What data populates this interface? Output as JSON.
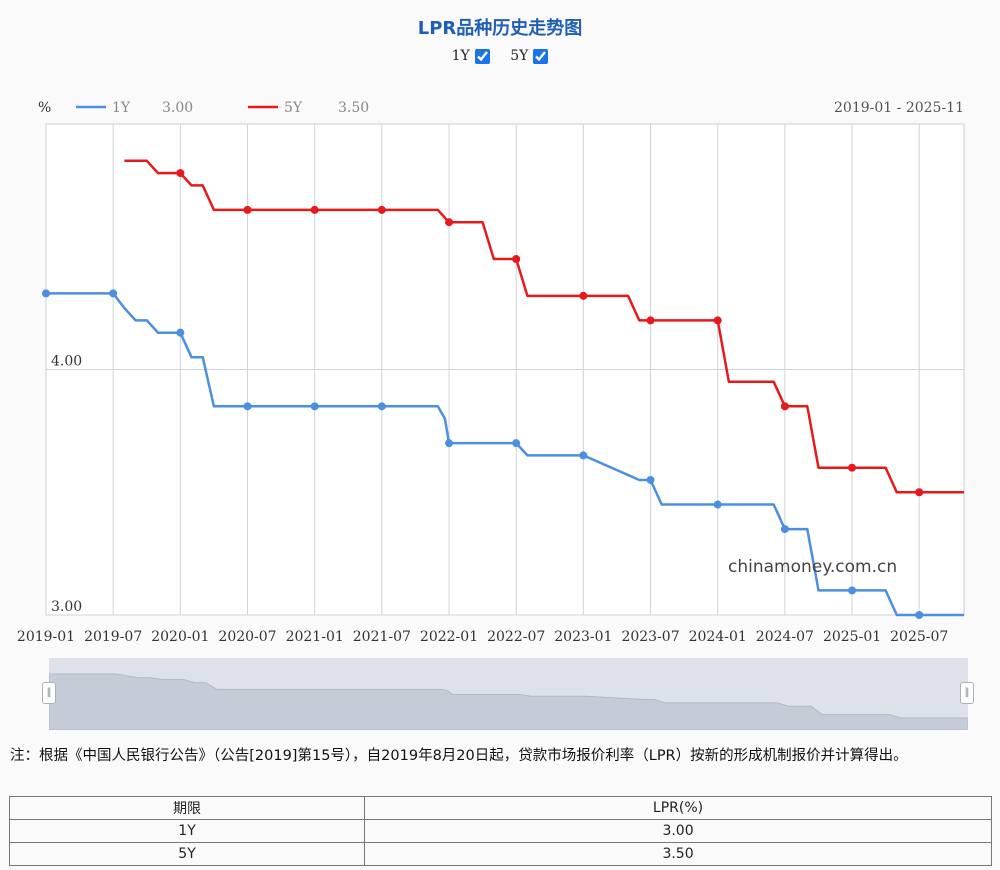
{
  "title": "LPR品种历史走势图",
  "toggles": [
    {
      "label": "1Y",
      "checked": true
    },
    {
      "label": "5Y",
      "checked": true
    }
  ],
  "watermark": "chinamoney.com.cn",
  "chart_data": {
    "type": "line",
    "ylabel": "%",
    "date_range": "2019-01 - 2025-11",
    "y_ticks": [
      "4.00",
      "3.00"
    ],
    "ylim": [
      3.0,
      5.0
    ],
    "x_ticks": [
      "2019-01",
      "2019-07",
      "2020-01",
      "2020-07",
      "2021-01",
      "2021-07",
      "2022-01",
      "2022-07",
      "2023-01",
      "2023-07",
      "2024-01",
      "2024-07",
      "2025-01",
      "2025-07"
    ],
    "grid": true,
    "legend_position": "top-left",
    "series": [
      {
        "name": "1Y",
        "latest": "3.00",
        "color": "#4a8fe0",
        "points": [
          [
            "2019-01",
            4.31
          ],
          [
            "2019-07",
            4.31
          ],
          [
            "2019-08",
            4.25
          ],
          [
            "2019-09",
            4.2
          ],
          [
            "2019-10",
            4.2
          ],
          [
            "2019-11",
            4.15
          ],
          [
            "2020-01",
            4.15
          ],
          [
            "2020-02",
            4.05
          ],
          [
            "2020-03",
            4.05
          ],
          [
            "2020-04",
            3.85
          ],
          [
            "2020-07",
            3.85
          ],
          [
            "2021-01",
            3.85
          ],
          [
            "2021-07",
            3.85
          ],
          [
            "2021-12",
            3.85
          ],
          [
            "2021-12-20",
            3.8
          ],
          [
            "2022-01",
            3.7
          ],
          [
            "2022-07",
            3.7
          ],
          [
            "2022-08",
            3.65
          ],
          [
            "2023-01",
            3.65
          ],
          [
            "2023-06",
            3.55
          ],
          [
            "2023-07",
            3.55
          ],
          [
            "2023-08",
            3.45
          ],
          [
            "2024-01",
            3.45
          ],
          [
            "2024-06",
            3.45
          ],
          [
            "2024-07",
            3.35
          ],
          [
            "2024-09",
            3.35
          ],
          [
            "2024-10",
            3.1
          ],
          [
            "2025-01",
            3.1
          ],
          [
            "2025-04",
            3.1
          ],
          [
            "2025-05",
            3.0
          ],
          [
            "2025-07",
            3.0
          ],
          [
            "2025-11",
            3.0
          ]
        ],
        "markers": [
          "2019-01",
          "2019-07",
          "2020-01",
          "2020-07",
          "2021-01",
          "2021-07",
          "2022-01",
          "2022-07",
          "2023-01",
          "2023-07",
          "2024-01",
          "2024-07",
          "2025-01",
          "2025-07"
        ]
      },
      {
        "name": "5Y",
        "latest": "3.50",
        "color": "#e8191b",
        "points": [
          [
            "2019-08",
            4.85
          ],
          [
            "2019-10",
            4.85
          ],
          [
            "2019-11",
            4.8
          ],
          [
            "2020-01",
            4.8
          ],
          [
            "2020-02",
            4.75
          ],
          [
            "2020-03",
            4.75
          ],
          [
            "2020-04",
            4.65
          ],
          [
            "2020-07",
            4.65
          ],
          [
            "2021-01",
            4.65
          ],
          [
            "2021-07",
            4.65
          ],
          [
            "2021-12",
            4.65
          ],
          [
            "2022-01",
            4.6
          ],
          [
            "2022-04",
            4.6
          ],
          [
            "2022-05",
            4.45
          ],
          [
            "2022-07",
            4.45
          ],
          [
            "2022-08",
            4.3
          ],
          [
            "2023-01",
            4.3
          ],
          [
            "2023-05",
            4.3
          ],
          [
            "2023-06",
            4.2
          ],
          [
            "2023-07",
            4.2
          ],
          [
            "2024-01",
            4.2
          ],
          [
            "2024-02",
            3.95
          ],
          [
            "2024-06",
            3.95
          ],
          [
            "2024-07",
            3.85
          ],
          [
            "2024-09",
            3.85
          ],
          [
            "2024-10",
            3.6
          ],
          [
            "2025-01",
            3.6
          ],
          [
            "2025-04",
            3.6
          ],
          [
            "2025-05",
            3.5
          ],
          [
            "2025-07",
            3.5
          ],
          [
            "2025-11",
            3.5
          ]
        ],
        "markers": [
          "2020-01",
          "2020-07",
          "2021-01",
          "2021-07",
          "2022-01",
          "2022-07",
          "2023-01",
          "2023-07",
          "2024-01",
          "2024-07",
          "2025-01",
          "2025-07"
        ]
      }
    ]
  },
  "note": "注：根据《中国人民银行公告》（公告[2019]第15号），自2019年8月20日起，贷款市场报价利率（LPR）按新的形成机制报价并计算得出。",
  "table": {
    "headers": [
      "期限",
      "LPR(%)"
    ],
    "rows": [
      [
        "1Y",
        "3.00"
      ],
      [
        "5Y",
        "3.50"
      ]
    ]
  }
}
